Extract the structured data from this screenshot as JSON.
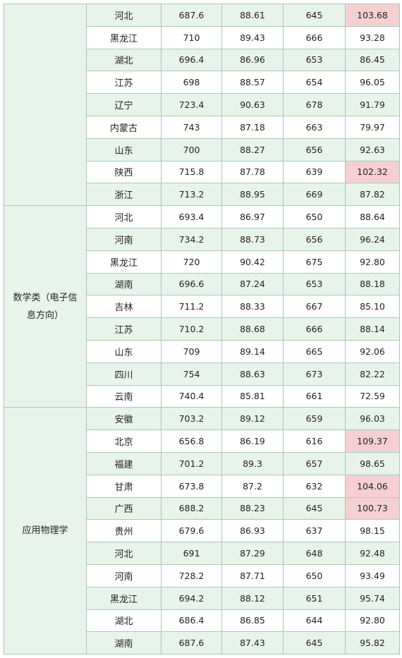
{
  "groups": [
    {
      "major": "",
      "rows": [
        {
          "province": "河北",
          "c1": "687.6",
          "c2": "88.61",
          "c3": "645",
          "c4": "103.68",
          "hl": true
        },
        {
          "province": "黑龙江",
          "c1": "710",
          "c2": "89.43",
          "c3": "666",
          "c4": "93.28"
        },
        {
          "province": "湖北",
          "c1": "696.4",
          "c2": "86.96",
          "c3": "653",
          "c4": "86.45"
        },
        {
          "province": "江苏",
          "c1": "698",
          "c2": "88.57",
          "c3": "654",
          "c4": "96.05"
        },
        {
          "province": "辽宁",
          "c1": "723.4",
          "c2": "90.63",
          "c3": "678",
          "c4": "91.79"
        },
        {
          "province": "内蒙古",
          "c1": "743",
          "c2": "87.18",
          "c3": "663",
          "c4": "79.97"
        },
        {
          "province": "山东",
          "c1": "700",
          "c2": "88.27",
          "c3": "656",
          "c4": "92.63"
        },
        {
          "province": "陕西",
          "c1": "715.8",
          "c2": "87.78",
          "c3": "639",
          "c4": "102.32",
          "hl": true
        },
        {
          "province": "浙江",
          "c1": "713.2",
          "c2": "88.95",
          "c3": "669",
          "c4": "87.82"
        }
      ]
    },
    {
      "major": "数学类（电子信息方向）",
      "rows": [
        {
          "province": "河北",
          "c1": "693.4",
          "c2": "86.97",
          "c3": "650",
          "c4": "88.64"
        },
        {
          "province": "河南",
          "c1": "734.2",
          "c2": "88.73",
          "c3": "656",
          "c4": "96.24"
        },
        {
          "province": "黑龙江",
          "c1": "720",
          "c2": "90.42",
          "c3": "675",
          "c4": "92.80"
        },
        {
          "province": "湖南",
          "c1": "696.6",
          "c2": "87.24",
          "c3": "653",
          "c4": "88.18"
        },
        {
          "province": "吉林",
          "c1": "711.2",
          "c2": "88.33",
          "c3": "667",
          "c4": "85.10"
        },
        {
          "province": "江苏",
          "c1": "710.2",
          "c2": "88.68",
          "c3": "666",
          "c4": "88.14"
        },
        {
          "province": "山东",
          "c1": "709",
          "c2": "89.14",
          "c3": "665",
          "c4": "92.06"
        },
        {
          "province": "四川",
          "c1": "754",
          "c2": "88.63",
          "c3": "673",
          "c4": "82.22"
        },
        {
          "province": "云南",
          "c1": "740.4",
          "c2": "85.81",
          "c3": "661",
          "c4": "72.59"
        }
      ]
    },
    {
      "major": "应用物理学",
      "rows": [
        {
          "province": "安徽",
          "c1": "703.2",
          "c2": "89.12",
          "c3": "659",
          "c4": "96.03"
        },
        {
          "province": "北京",
          "c1": "656.8",
          "c2": "86.19",
          "c3": "616",
          "c4": "109.37",
          "hl": true
        },
        {
          "province": "福建",
          "c1": "701.2",
          "c2": "89.3",
          "c3": "657",
          "c4": "98.65"
        },
        {
          "province": "甘肃",
          "c1": "673.8",
          "c2": "87.2",
          "c3": "632",
          "c4": "104.06",
          "hl": true
        },
        {
          "province": "广西",
          "c1": "688.2",
          "c2": "88.23",
          "c3": "645",
          "c4": "100.73",
          "hl": true
        },
        {
          "province": "贵州",
          "c1": "679.6",
          "c2": "86.93",
          "c3": "637",
          "c4": "98.15"
        },
        {
          "province": "河北",
          "c1": "691",
          "c2": "87.29",
          "c3": "648",
          "c4": "92.48"
        },
        {
          "province": "河南",
          "c1": "728.2",
          "c2": "87.71",
          "c3": "650",
          "c4": "93.49"
        },
        {
          "province": "黑龙江",
          "c1": "694.2",
          "c2": "88.12",
          "c3": "651",
          "c4": "95.74"
        },
        {
          "province": "湖北",
          "c1": "686.4",
          "c2": "86.85",
          "c3": "644",
          "c4": "92.80"
        },
        {
          "province": "湖南",
          "c1": "687.6",
          "c2": "87.43",
          "c3": "645",
          "c4": "95.82"
        }
      ]
    }
  ]
}
